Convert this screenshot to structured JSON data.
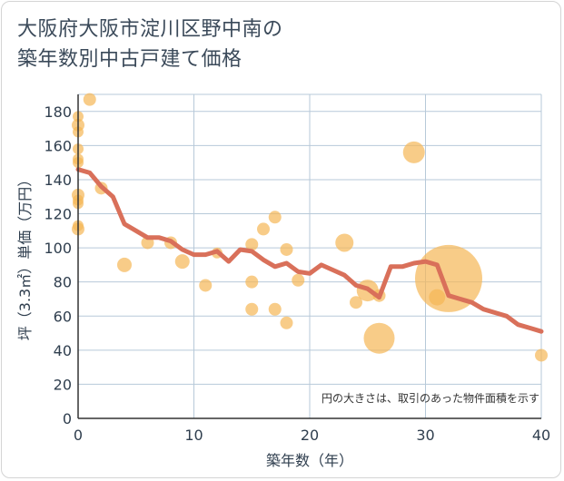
{
  "chart_data": {
    "type": "scatter",
    "title_lines": [
      "大阪府大阪市淀川区野中南の",
      "築年数別中古戸建て価格"
    ],
    "xlabel": "築年数（年）",
    "ylabel": "坪（3.3㎡）単価（万円）",
    "xlim": [
      0,
      40
    ],
    "ylim": [
      0,
      190
    ],
    "x_ticks": [
      0,
      10,
      20,
      30,
      40
    ],
    "y_ticks": [
      0,
      20,
      40,
      60,
      80,
      100,
      120,
      140,
      160,
      180
    ],
    "grid": true,
    "note": "円の大きさは、取引のあった物件面積を示す",
    "colors": {
      "point": "#f5b655",
      "line": "#d9705a",
      "grid": "#b7c9d9"
    },
    "points": [
      {
        "x": 0,
        "y": 177,
        "r": 6
      },
      {
        "x": 0,
        "y": 172,
        "r": 7
      },
      {
        "x": 0,
        "y": 168,
        "r": 6
      },
      {
        "x": 0,
        "y": 158,
        "r": 6
      },
      {
        "x": 0,
        "y": 152,
        "r": 6
      },
      {
        "x": 0,
        "y": 150,
        "r": 6
      },
      {
        "x": 0,
        "y": 131,
        "r": 7
      },
      {
        "x": 0,
        "y": 128,
        "r": 6
      },
      {
        "x": 0,
        "y": 126,
        "r": 6
      },
      {
        "x": 0,
        "y": 113,
        "r": 6
      },
      {
        "x": 0,
        "y": 111,
        "r": 7
      },
      {
        "x": 1,
        "y": 187,
        "r": 7
      },
      {
        "x": 2,
        "y": 135,
        "r": 7
      },
      {
        "x": 4,
        "y": 90,
        "r": 8
      },
      {
        "x": 6,
        "y": 103,
        "r": 7
      },
      {
        "x": 8,
        "y": 103,
        "r": 7
      },
      {
        "x": 9,
        "y": 92,
        "r": 8
      },
      {
        "x": 11,
        "y": 78,
        "r": 7
      },
      {
        "x": 12,
        "y": 97,
        "r": 6
      },
      {
        "x": 15,
        "y": 102,
        "r": 7
      },
      {
        "x": 15,
        "y": 80,
        "r": 7
      },
      {
        "x": 15,
        "y": 64,
        "r": 7
      },
      {
        "x": 16,
        "y": 111,
        "r": 7
      },
      {
        "x": 17,
        "y": 118,
        "r": 7
      },
      {
        "x": 17,
        "y": 64,
        "r": 7
      },
      {
        "x": 18,
        "y": 99,
        "r": 7
      },
      {
        "x": 18,
        "y": 56,
        "r": 7
      },
      {
        "x": 19,
        "y": 81,
        "r": 7
      },
      {
        "x": 23,
        "y": 103,
        "r": 10
      },
      {
        "x": 24,
        "y": 68,
        "r": 7
      },
      {
        "x": 25,
        "y": 75,
        "r": 12
      },
      {
        "x": 26,
        "y": 72,
        "r": 7
      },
      {
        "x": 26,
        "y": 47,
        "r": 17
      },
      {
        "x": 29,
        "y": 156,
        "r": 12
      },
      {
        "x": 31,
        "y": 71,
        "r": 9
      },
      {
        "x": 32,
        "y": 82,
        "r": 37
      },
      {
        "x": 40,
        "y": 37,
        "r": 7
      }
    ],
    "trend": {
      "x": [
        0,
        1,
        2,
        3,
        4,
        5,
        6,
        7,
        8,
        9,
        10,
        11,
        12,
        13,
        14,
        15,
        16,
        17,
        18,
        19,
        20,
        21,
        22,
        23,
        24,
        25,
        26,
        27,
        28,
        29,
        30,
        31,
        32,
        33,
        34,
        35,
        36,
        37,
        38,
        39,
        40
      ],
      "y": [
        146,
        144,
        136,
        130,
        114,
        110,
        106,
        106,
        104,
        99,
        96,
        96,
        98,
        92,
        99,
        98,
        93,
        89,
        91,
        86,
        85,
        90,
        87,
        84,
        78,
        76,
        71,
        89,
        89,
        91,
        92,
        90,
        72,
        70,
        68,
        64,
        62,
        60,
        55,
        53,
        51
      ]
    }
  }
}
